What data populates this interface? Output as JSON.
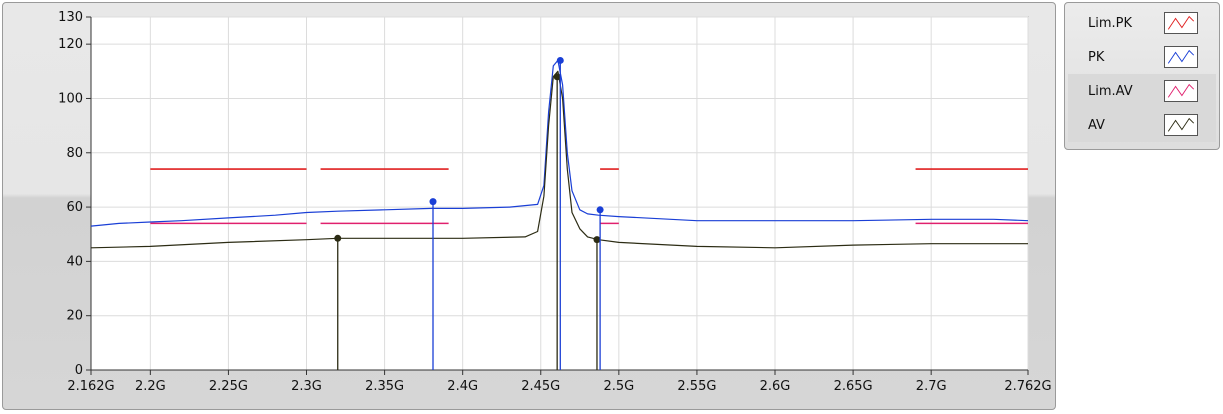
{
  "chart_data": {
    "type": "line",
    "xlim": [
      2.162,
      2.762
    ],
    "ylim": [
      0,
      130
    ],
    "x_ticks": [
      2.162,
      2.2,
      2.25,
      2.3,
      2.35,
      2.4,
      2.45,
      2.5,
      2.55,
      2.6,
      2.65,
      2.7,
      2.762
    ],
    "x_tick_labels": [
      "2.162G",
      "2.2G",
      "2.25G",
      "2.3G",
      "2.35G",
      "2.4G",
      "2.45G",
      "2.5G",
      "2.55G",
      "2.6G",
      "2.65G",
      "2.7G",
      "2.762G"
    ],
    "y_ticks": [
      0,
      20,
      40,
      60,
      80,
      100,
      120,
      130
    ],
    "y_tick_labels": [
      "0",
      "20",
      "40",
      "60",
      "80",
      "100",
      "120",
      "130"
    ],
    "grid": true,
    "legend_position": "right",
    "series": [
      {
        "name": "Lim.PK",
        "color": "#e02020",
        "segments": [
          [
            2.2,
            2.3,
            74
          ],
          [
            2.309,
            2.391,
            74
          ],
          [
            2.488,
            2.5,
            74
          ],
          [
            2.69,
            2.762,
            74
          ]
        ]
      },
      {
        "name": "PK",
        "color": "#1a3fd6",
        "x": [
          2.162,
          2.18,
          2.2,
          2.22,
          2.25,
          2.28,
          2.3,
          2.32,
          2.35,
          2.38,
          2.4,
          2.43,
          2.448,
          2.452,
          2.455,
          2.458,
          2.461,
          2.464,
          2.467,
          2.47,
          2.475,
          2.48,
          2.487,
          2.5,
          2.55,
          2.6,
          2.65,
          2.7,
          2.74,
          2.762
        ],
        "y": [
          53,
          54,
          54.5,
          55,
          56,
          57,
          58,
          58.5,
          59,
          59.5,
          59.5,
          60,
          61,
          68,
          95,
          112,
          114,
          105,
          80,
          66,
          59,
          57.5,
          57,
          56.5,
          55,
          55,
          55,
          55.5,
          55.5,
          55
        ]
      },
      {
        "name": "Lim.AV",
        "color": "#e0206e",
        "segments": [
          [
            2.2,
            2.3,
            54
          ],
          [
            2.309,
            2.391,
            54
          ],
          [
            2.488,
            2.5,
            54
          ],
          [
            2.69,
            2.762,
            54
          ]
        ]
      },
      {
        "name": "AV",
        "color": "#2c2c14",
        "x": [
          2.162,
          2.2,
          2.25,
          2.3,
          2.32,
          2.35,
          2.4,
          2.44,
          2.448,
          2.452,
          2.455,
          2.458,
          2.461,
          2.464,
          2.467,
          2.47,
          2.475,
          2.48,
          2.487,
          2.5,
          2.55,
          2.6,
          2.65,
          2.7,
          2.762
        ],
        "y": [
          45,
          45.5,
          47,
          48,
          48.5,
          48.5,
          48.5,
          49,
          51,
          64,
          90,
          108,
          110,
          100,
          74,
          58,
          52,
          49,
          48,
          47,
          45.5,
          45,
          46,
          46.5,
          46.5
        ]
      }
    ],
    "markers": [
      {
        "series": "AV",
        "x": 2.32,
        "y": 48.5
      },
      {
        "series": "PK",
        "x": 2.381,
        "y": 62
      },
      {
        "series": "AV",
        "x": 2.4605,
        "y": 108
      },
      {
        "series": "PK",
        "x": 2.4625,
        "y": 114
      },
      {
        "series": "AV",
        "x": 2.486,
        "y": 48
      },
      {
        "series": "PK",
        "x": 2.488,
        "y": 59
      }
    ]
  }
}
